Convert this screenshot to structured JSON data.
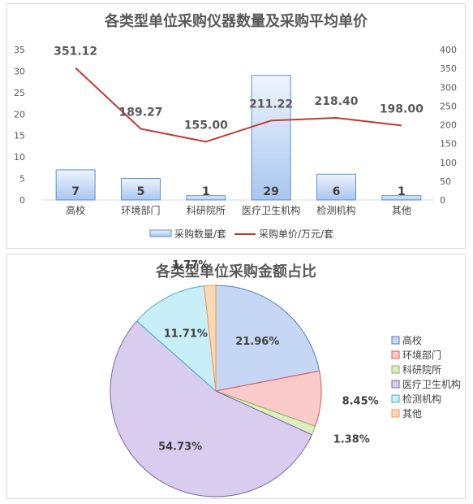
{
  "chart_data": [
    {
      "type": "bar",
      "title": "各类型单位采购仪器数量及采购平均单价",
      "categories": [
        "高校",
        "环境部门",
        "科研院所",
        "医疗卫生机构",
        "检测机构",
        "其他"
      ],
      "series": [
        {
          "name": "采购数量/套",
          "type": "bar",
          "axis": "left",
          "values": [
            7,
            5,
            1,
            29,
            6,
            1
          ],
          "labels": [
            "7",
            "5",
            "1",
            "29",
            "6",
            "1"
          ]
        },
        {
          "name": "采购单价/万元/套",
          "type": "line",
          "axis": "right",
          "values": [
            351.12,
            189.27,
            155.0,
            211.22,
            218.4,
            198.0
          ],
          "labels": [
            "351.12",
            "189.27",
            "155.00",
            "211.22",
            "218.40",
            "198.00"
          ]
        }
      ],
      "y_left": {
        "range": [
          0,
          35
        ],
        "ticks": [
          "0",
          "5",
          "10",
          "15",
          "20",
          "25",
          "30",
          "35"
        ]
      },
      "y_right": {
        "range": [
          0,
          400
        ],
        "ticks": [
          "0",
          "50",
          "100",
          "150",
          "200",
          "250",
          "300",
          "350",
          "400"
        ]
      },
      "grid": false,
      "legend": "bottom",
      "colors": {
        "bar_fill_top": "#eef4fd",
        "bar_fill_bottom": "#a9c6ef",
        "bar_stroke": "#5b8fd6",
        "line": "#c0392b",
        "axis": "#d9d9d9"
      }
    },
    {
      "type": "pie",
      "title": "各类型单位采购金额占比",
      "categories": [
        "高校",
        "环境部门",
        "科研院所",
        "医疗卫生机构",
        "检测机构",
        "其他"
      ],
      "values": [
        21.96,
        8.45,
        1.38,
        54.73,
        11.71,
        1.77
      ],
      "labels": [
        "21.96%",
        "8.45%",
        "1.38%",
        "54.73%",
        "11.71%",
        "1.77%"
      ],
      "colors": [
        "#c5d7f4",
        "#fbcaca",
        "#dcefc4",
        "#d8cdef",
        "#c8eff8",
        "#fbd9b8"
      ],
      "strokes": [
        "#4f81bd",
        "#e05656",
        "#8ab84a",
        "#8064a2",
        "#4bacc6",
        "#f79646"
      ],
      "legend": "right"
    }
  ]
}
